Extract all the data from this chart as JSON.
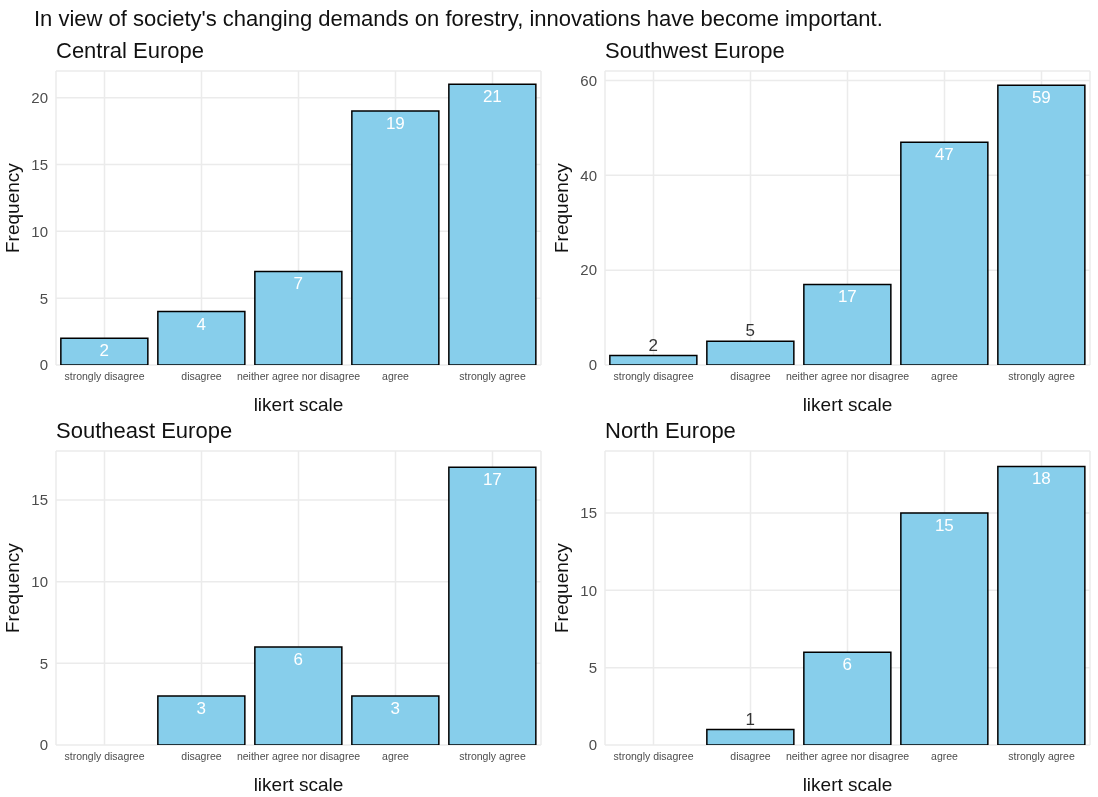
{
  "chart_data": [
    {
      "type": "bar",
      "title": "Central Europe",
      "annotations": [
        "In view of society's changing demands on forestry, innovations have become important."
      ],
      "xlabel": "likert scale",
      "ylabel": "Frequency",
      "categories": [
        "strongly disagree",
        "disagree",
        "neither agree nor disagree",
        "agree",
        "strongly agree"
      ],
      "values": [
        2,
        4,
        7,
        19,
        21
      ],
      "color": "#87ceeb",
      "ylim": [
        0,
        22
      ],
      "yticks": [
        0,
        5,
        10,
        15,
        20
      ],
      "grid": true,
      "data_labels": true
    },
    {
      "type": "bar",
      "title": "Southwest Europe",
      "xlabel": "likert scale",
      "ylabel": "Frequency",
      "categories": [
        "strongly disagree",
        "disagree",
        "neither agree nor disagree",
        "agree",
        "strongly agree"
      ],
      "values": [
        2,
        5,
        17,
        47,
        59
      ],
      "color": "#87ceeb",
      "ylim": [
        0,
        62
      ],
      "yticks": [
        0,
        20,
        40,
        60
      ],
      "grid": true,
      "data_labels": true
    },
    {
      "type": "bar",
      "title": "Southeast Europe",
      "xlabel": "likert scale",
      "ylabel": "Frequency",
      "categories": [
        "strongly disagree",
        "disagree",
        "neither agree nor disagree",
        "agree",
        "strongly agree"
      ],
      "values": [
        null,
        3,
        6,
        3,
        17
      ],
      "color": "#87ceeb",
      "ylim": [
        0,
        18
      ],
      "yticks": [
        0,
        5,
        10,
        15
      ],
      "grid": true,
      "data_labels": true
    },
    {
      "type": "bar",
      "title": "North Europe",
      "xlabel": "likert scale",
      "ylabel": "Frequency",
      "categories": [
        "strongly disagree",
        "disagree",
        "neither agree nor disagree",
        "agree",
        "strongly agree"
      ],
      "values": [
        null,
        1,
        6,
        15,
        18
      ],
      "color": "#87ceeb",
      "ylim": [
        0,
        19
      ],
      "yticks": [
        0,
        5,
        10,
        15
      ],
      "grid": true,
      "data_labels": true
    }
  ]
}
